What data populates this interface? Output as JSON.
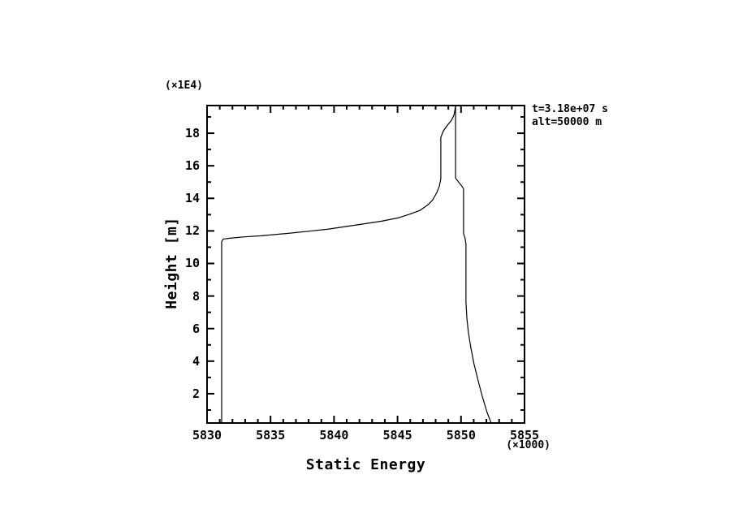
{
  "figure": {
    "background": "#ffffff",
    "ink_color": "#000000"
  },
  "labels": {
    "y_multiplier": "(×1E4)",
    "x_multiplier": "(×1000)",
    "y_axis_title": "Height [m]",
    "x_axis_title": "Static Energy"
  },
  "annotations": {
    "line1": "t=3.18e+07 s",
    "line2": "alt=50000 m"
  },
  "chart_data": {
    "type": "line",
    "title": "",
    "xlabel": "Static Energy",
    "ylabel": "Height [m]",
    "x_unit_multiplier": "(×1000)",
    "y_unit_multiplier": "(×1E4)",
    "xlim": [
      5830,
      5855
    ],
    "ylim": [
      0.2,
      19.7
    ],
    "x_major_ticks": [
      5830,
      5835,
      5840,
      5845,
      5850,
      5855
    ],
    "x_tick_labels": [
      "5830",
      "5835",
      "5840",
      "5845",
      "5850",
      "5855"
    ],
    "x_minor_step": 1,
    "y_major_ticks": [
      2,
      4,
      6,
      8,
      10,
      12,
      14,
      16,
      18
    ],
    "y_tick_labels": [
      "2",
      "4",
      "6",
      "8",
      "10",
      "12",
      "14",
      "16",
      "18"
    ],
    "y_minor_step": 1,
    "grid": false,
    "legend_position": "none",
    "annotations": [
      "t=3.18e+07 s",
      "alt=50000 m"
    ],
    "line_color": "#000000",
    "series": [
      {
        "name": "static-energy-profile-left",
        "points": [
          [
            5831.15,
            0.2
          ],
          [
            5831.15,
            11.35
          ],
          [
            5831.28,
            11.5
          ],
          [
            5831.79,
            11.55
          ],
          [
            5832.88,
            11.63
          ],
          [
            5834.28,
            11.7
          ],
          [
            5836.39,
            11.85
          ],
          [
            5837.99,
            11.98
          ],
          [
            5839.46,
            12.1
          ],
          [
            5841.64,
            12.35
          ],
          [
            5843.75,
            12.6
          ],
          [
            5845.03,
            12.8
          ],
          [
            5845.86,
            13.0
          ],
          [
            5846.75,
            13.25
          ],
          [
            5847.39,
            13.6
          ],
          [
            5847.77,
            13.9
          ],
          [
            5848.09,
            14.35
          ],
          [
            5848.29,
            14.75
          ],
          [
            5848.41,
            15.2
          ],
          [
            5848.41,
            17.75
          ],
          [
            5848.61,
            18.15
          ],
          [
            5848.93,
            18.5
          ],
          [
            5849.25,
            18.8
          ],
          [
            5849.44,
            19.1
          ],
          [
            5849.53,
            19.45
          ],
          [
            5849.57,
            19.7
          ]
        ]
      },
      {
        "name": "static-energy-profile-right",
        "points": [
          [
            5849.57,
            19.7
          ],
          [
            5849.57,
            15.25
          ],
          [
            5849.76,
            15.05
          ],
          [
            5850.02,
            14.8
          ],
          [
            5850.2,
            14.6
          ],
          [
            5850.2,
            11.85
          ],
          [
            5850.33,
            11.5
          ],
          [
            5850.39,
            11.15
          ],
          [
            5850.39,
            7.6
          ],
          [
            5850.46,
            6.65
          ],
          [
            5850.58,
            5.75
          ],
          [
            5850.78,
            4.8
          ],
          [
            5851.03,
            3.8
          ],
          [
            5851.35,
            2.8
          ],
          [
            5851.67,
            1.85
          ],
          [
            5852.05,
            0.85
          ],
          [
            5852.37,
            0.2
          ]
        ]
      }
    ]
  }
}
